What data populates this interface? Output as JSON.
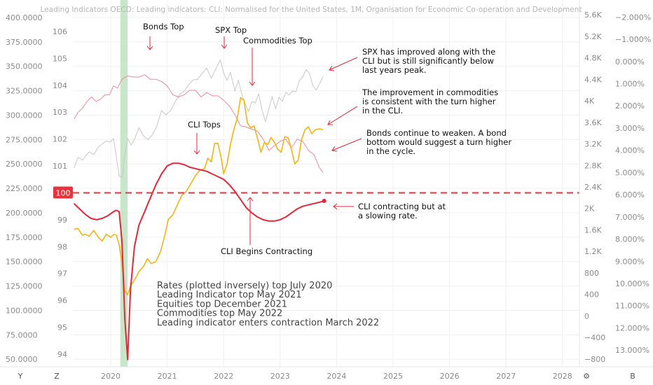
{
  "header": {
    "title": "Leading Indicators OECD: Leading indicators: CLI: Normalised for the United States, 1M, Organisation for Economic Co-operation and Development"
  },
  "axis_buttons": {
    "left": "Y",
    "z": "Z",
    "settings": "⚙",
    "right": "B"
  },
  "colors": {
    "cli": "#e0283a",
    "commodities": "#f5b40f",
    "spx": "#c8c8c8",
    "bonds": "#f08aa0",
    "reference_line": "#e8323c",
    "recession_band": "#c8e6c9",
    "grid": "#f0f0f0",
    "tick_text": "#8a8a8a"
  },
  "chart_data": {
    "type": "line",
    "title": "Leading Indicators OECD: Leading indicators: CLI: Normalised for the United States, 1M, Organisation for Economic Co-operation and Development",
    "x_ticks": [
      "2020",
      "2021",
      "2022",
      "2023",
      "2024",
      "2025",
      "2026",
      "2027",
      "2028"
    ],
    "xlim": [
      2019.33,
      2028.3
    ],
    "axes": {
      "left_outer": {
        "ticks": [
          "400.0000",
          "375.0000",
          "350.0000",
          "325.0000",
          "300.0000",
          "275.0000",
          "250.0000",
          "225.0000",
          "200.0000",
          "175.0000",
          "150.0000",
          "125.0000",
          "100.0000",
          "75.0000",
          "50.0000"
        ],
        "range": [
          48,
          405
        ]
      },
      "left_inner": {
        "ticks": [
          "106",
          "105",
          "104",
          "103",
          "102",
          "101",
          "100",
          "99",
          "98",
          "97",
          "96",
          "95",
          "94"
        ],
        "range": [
          93.74,
          106.7
        ]
      },
      "right_inner": {
        "ticks": [
          "5.6K",
          "5.2K",
          "4.8K",
          "4.4K",
          "4K",
          "3.6K",
          "3.2K",
          "2.8K",
          "2.4K",
          "2K",
          "1.6K",
          "1.2K",
          "800",
          "400",
          "0",
          "−400",
          "−800"
        ],
        "range": [
          -840,
          5640
        ]
      },
      "right_outer": {
        "ticks": [
          "−2.000%",
          "−1.000%",
          "0.000%",
          "1.000%",
          "2.000%",
          "3.000%",
          "4.000%",
          "5.000%",
          "6.000%",
          "7.000%",
          "8.000%",
          "9.000%",
          "10.000%",
          "11.000%",
          "12.000%",
          "13.000%"
        ],
        "inverted": true,
        "range": [
          -2.2,
          13.5
        ]
      }
    },
    "reference_line": {
      "value": 100,
      "label": "100"
    },
    "shaded_band": {
      "x": [
        2020.17,
        2020.3
      ]
    },
    "series": [
      {
        "axis": "left_inner",
        "x": [
          2019.35,
          2019.45,
          2019.55,
          2019.65,
          2019.75,
          2019.85,
          2019.95,
          2020.05,
          2020.1,
          2020.15,
          2020.2,
          2020.25,
          2020.3,
          2020.35,
          2020.42,
          2020.5,
          2020.6,
          2020.7,
          2020.8,
          2020.9,
          2021.0,
          2021.1,
          2021.2,
          2021.3,
          2021.4,
          2021.5,
          2021.6,
          2021.7,
          2021.8,
          2021.9,
          2022.0,
          2022.1,
          2022.2,
          2022.3,
          2022.4,
          2022.5,
          2022.6,
          2022.7,
          2022.8,
          2022.9,
          2023.0,
          2023.1,
          2023.2,
          2023.3,
          2023.4,
          2023.5,
          2023.6,
          2023.7,
          2023.78
        ],
        "values": [
          99.6,
          99.4,
          99.2,
          99.05,
          99.0,
          99.05,
          99.15,
          99.3,
          99.35,
          99.3,
          98.2,
          95.3,
          93.8,
          96.4,
          98.0,
          98.8,
          99.3,
          99.8,
          100.3,
          100.7,
          101.0,
          101.1,
          101.1,
          101.05,
          100.95,
          100.9,
          100.85,
          100.8,
          100.7,
          100.6,
          100.5,
          100.3,
          100.05,
          99.75,
          99.45,
          99.25,
          99.1,
          99.0,
          98.95,
          98.95,
          99.0,
          99.1,
          99.25,
          99.4,
          99.5,
          99.55,
          99.6,
          99.65,
          99.7
        ]
      },
      {
        "axis": "left_outer",
        "x": [
          2019.35,
          2019.42,
          2019.5,
          2019.55,
          2019.62,
          2019.7,
          2019.78,
          2019.85,
          2019.92,
          2020.0,
          2020.06,
          2020.1,
          2020.15,
          2020.2,
          2020.25,
          2020.3,
          2020.35,
          2020.42,
          2020.5,
          2020.58,
          2020.65,
          2020.72,
          2020.8,
          2020.88,
          2020.95,
          2021.02,
          2021.1,
          2021.18,
          2021.26,
          2021.34,
          2021.42,
          2021.5,
          2021.58,
          2021.66,
          2021.72,
          2021.78,
          2021.84,
          2021.9,
          2021.96,
          2022.0,
          2022.06,
          2022.12,
          2022.18,
          2022.24,
          2022.3,
          2022.36,
          2022.42,
          2022.48,
          2022.54,
          2022.6,
          2022.66,
          2022.72,
          2022.78,
          2022.84,
          2022.9,
          2022.96,
          2023.02,
          2023.08,
          2023.14,
          2023.2,
          2023.26,
          2023.32,
          2023.38,
          2023.44,
          2023.5,
          2023.56,
          2023.62,
          2023.7,
          2023.76
        ],
        "values": [
          183,
          184,
          177,
          178,
          176,
          182,
          175,
          171,
          178,
          175,
          178,
          177,
          167,
          148,
          120,
          116,
          125,
          131,
          140,
          145,
          153,
          148,
          150,
          160,
          175,
          193,
          198,
          208,
          218,
          222,
          230,
          238,
          244,
          245,
          256,
          252,
          271,
          271,
          255,
          240,
          250,
          270,
          285,
          297,
          318,
          315,
          292,
          287,
          289,
          276,
          262,
          272,
          270,
          277,
          272,
          265,
          262,
          278,
          277,
          265,
          250,
          254,
          275,
          285,
          288,
          281,
          285,
          286,
          285
        ]
      },
      {
        "axis": "right_inner",
        "x": [
          2019.35,
          2019.42,
          2019.5,
          2019.56,
          2019.62,
          2019.7,
          2019.78,
          2019.85,
          2019.92,
          2020.0,
          2020.05,
          2020.1,
          2020.15,
          2020.2,
          2020.25,
          2020.3,
          2020.36,
          2020.42,
          2020.5,
          2020.58,
          2020.66,
          2020.74,
          2020.82,
          2020.9,
          2020.98,
          2021.06,
          2021.14,
          2021.22,
          2021.3,
          2021.38,
          2021.46,
          2021.54,
          2021.62,
          2021.7,
          2021.78,
          2021.86,
          2021.94,
          2022.0,
          2022.06,
          2022.12,
          2022.2,
          2022.26,
          2022.32,
          2022.38,
          2022.44,
          2022.5,
          2022.56,
          2022.62,
          2022.68,
          2022.74,
          2022.8,
          2022.86,
          2022.92,
          2022.98,
          2023.04,
          2023.1,
          2023.16,
          2023.22,
          2023.28,
          2023.34,
          2023.4,
          2023.46,
          2023.52,
          2023.58,
          2023.64,
          2023.7,
          2023.76
        ],
        "values": [
          2750,
          2950,
          2900,
          2980,
          3050,
          3000,
          3140,
          3200,
          3250,
          3240,
          3300,
          2950,
          2600,
          2580,
          3000,
          3300,
          3180,
          3280,
          3500,
          3350,
          3280,
          3370,
          3540,
          3820,
          3740,
          3820,
          3980,
          4120,
          4180,
          4300,
          4390,
          4400,
          4510,
          4610,
          4420,
          4590,
          4760,
          4520,
          4380,
          4530,
          4180,
          4380,
          4130,
          3950,
          3800,
          3990,
          3960,
          4130,
          3830,
          3610,
          3850,
          4080,
          3850,
          4070,
          3990,
          4160,
          4110,
          4180,
          4170,
          4370,
          4450,
          4580,
          4510,
          4280,
          4200,
          4320,
          4450
        ]
      },
      {
        "axis": "right_outer",
        "inverted": true,
        "x": [
          2019.35,
          2019.42,
          2019.5,
          2019.58,
          2019.66,
          2019.74,
          2019.82,
          2019.9,
          2019.98,
          2020.05,
          2020.12,
          2020.2,
          2020.3,
          2020.4,
          2020.5,
          2020.6,
          2020.7,
          2020.8,
          2020.9,
          2021.0,
          2021.1,
          2021.2,
          2021.3,
          2021.4,
          2021.5,
          2021.6,
          2021.7,
          2021.8,
          2021.9,
          2022.0,
          2022.1,
          2022.2,
          2022.3,
          2022.4,
          2022.5,
          2022.6,
          2022.7,
          2022.8,
          2022.9,
          2023.0,
          2023.1,
          2023.2,
          2023.3,
          2023.4,
          2023.5,
          2023.6,
          2023.7,
          2023.76
        ],
        "values": [
          2.6,
          2.3,
          2.1,
          1.8,
          1.6,
          1.8,
          1.7,
          1.5,
          1.5,
          1.1,
          1.2,
          0.8,
          0.65,
          0.7,
          0.7,
          0.6,
          0.8,
          0.8,
          0.9,
          1.1,
          1.5,
          1.6,
          1.5,
          1.3,
          1.3,
          1.6,
          1.4,
          1.55,
          1.55,
          1.75,
          2.0,
          2.4,
          2.9,
          2.95,
          3.05,
          3.15,
          3.5,
          4.0,
          3.8,
          3.6,
          3.5,
          3.9,
          3.5,
          3.6,
          4.0,
          4.2,
          4.8,
          5.0
        ]
      }
    ],
    "annotations": [
      {
        "text": "Bonds Top"
      },
      {
        "text": "SPX Top"
      },
      {
        "text": "Commodities Top"
      },
      {
        "text": "CLI Tops"
      },
      {
        "text": "CLI Begins Contracting"
      },
      {
        "text": "SPX has improved along with the CLI but is still significantly below last years peak."
      },
      {
        "text": "The improvement in commodities is consistent with the turn higher in the CLI."
      },
      {
        "text": "Bonds continue to weaken. A bond bottom would suggest a turn higher in the cycle."
      },
      {
        "text": "CLI contracting but at a slowing rate."
      }
    ],
    "notes": [
      "Rates (plotted inversely) top July 2020",
      "Leading Indicator top May 2021",
      "Equities top December 2021",
      "Commodities top May 2022",
      "Leading indicator enters contraction March 2022"
    ]
  }
}
